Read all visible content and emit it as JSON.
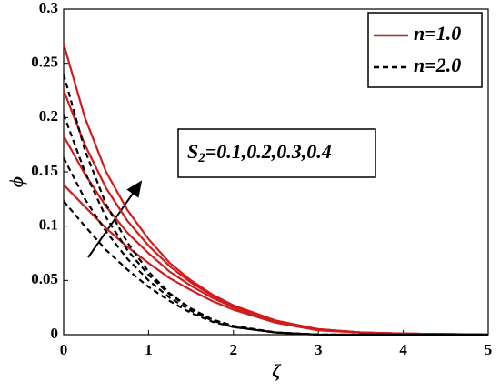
{
  "chart_data": {
    "type": "line",
    "xlabel": "ζ",
    "ylabel": "ϕ",
    "x": [
      0,
      0.25,
      0.5,
      0.75,
      1,
      1.25,
      1.5,
      1.75,
      2,
      2.5,
      3,
      3.5,
      4,
      5
    ],
    "series": [
      {
        "name": "n=1.0",
        "color": "#d01c1c",
        "legend_color": "#a8322a",
        "dash": false,
        "values": [
          [
            0.138,
            0.118,
            0.098,
            0.081,
            0.066,
            0.052,
            0.041,
            0.031,
            0.023,
            0.011,
            0.004,
            0.002,
            0.001,
            0
          ],
          [
            0.183,
            0.148,
            0.118,
            0.094,
            0.075,
            0.058,
            0.045,
            0.034,
            0.025,
            0.012,
            0.005,
            0.002,
            0.001,
            0
          ],
          [
            0.225,
            0.175,
            0.135,
            0.105,
            0.082,
            0.063,
            0.048,
            0.036,
            0.026,
            0.012,
            0.005,
            0.002,
            0.001,
            0
          ],
          [
            0.268,
            0.2,
            0.15,
            0.115,
            0.088,
            0.066,
            0.05,
            0.037,
            0.027,
            0.013,
            0.005,
            0.002,
            0.001,
            0
          ]
        ]
      },
      {
        "name": "n=2.0",
        "color": "#000000",
        "legend_color": "#000000",
        "dash": true,
        "values": [
          [
            0.123,
            0.1,
            0.078,
            0.06,
            0.044,
            0.031,
            0.02,
            0.012,
            0.007,
            0.002,
            0,
            0,
            0,
            0
          ],
          [
            0.163,
            0.125,
            0.095,
            0.07,
            0.05,
            0.034,
            0.022,
            0.013,
            0.007,
            0.002,
            0,
            0,
            0,
            0
          ],
          [
            0.203,
            0.15,
            0.108,
            0.078,
            0.055,
            0.037,
            0.024,
            0.014,
            0.008,
            0.002,
            0,
            0,
            0,
            0
          ],
          [
            0.24,
            0.17,
            0.12,
            0.085,
            0.058,
            0.038,
            0.024,
            0.014,
            0.008,
            0.002,
            0,
            0,
            0,
            0
          ]
        ]
      }
    ],
    "annotation": {
      "base": "S",
      "sub": "2",
      "text": "=0.1,0.2,0.3,0.4"
    },
    "xlim": [
      0,
      5
    ],
    "xticks": [
      0,
      1,
      2,
      3,
      4,
      5
    ],
    "ylim": [
      0,
      0.3
    ],
    "yticks": [
      0,
      0.05,
      0.1,
      0.15,
      0.2,
      0.25,
      0.3
    ],
    "legend": "upper right"
  }
}
